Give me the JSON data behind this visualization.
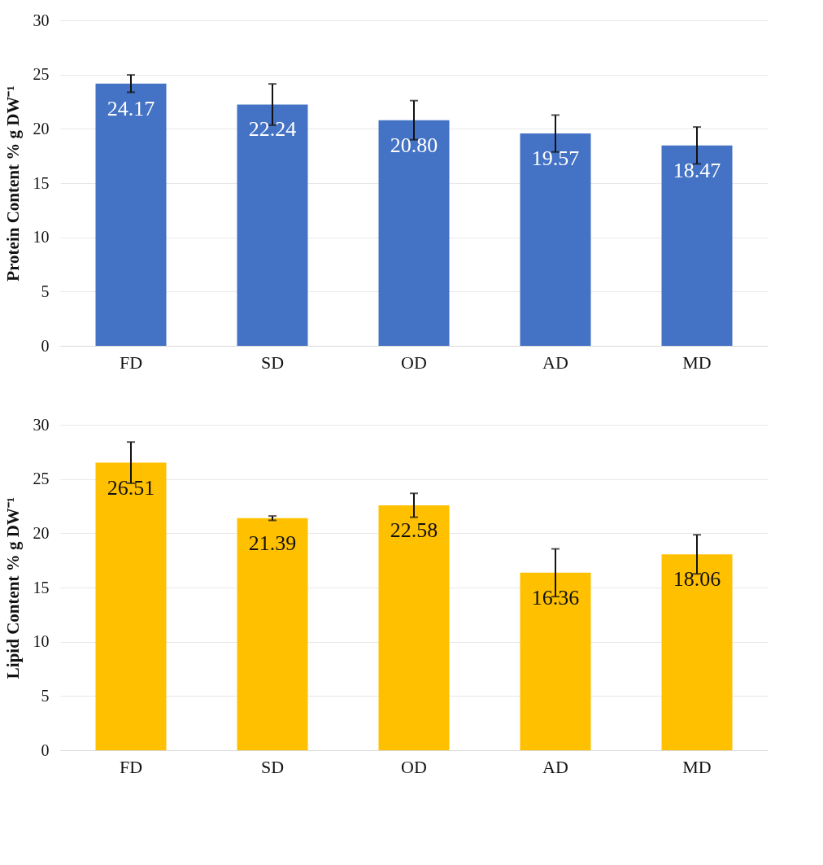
{
  "chart_data": [
    {
      "type": "bar",
      "ylabel": "Protein Content % g DW⁻¹",
      "categories": [
        "FD",
        "SD",
        "OD",
        "AD",
        "MD"
      ],
      "values": [
        24.17,
        22.24,
        20.8,
        19.57,
        18.47
      ],
      "value_labels": [
        "24.17",
        "22.24",
        "20.80",
        "19.57",
        "18.47"
      ],
      "errors": [
        0.8,
        1.9,
        1.8,
        1.7,
        1.7
      ],
      "color": "#4472c4",
      "ylim": [
        0,
        30
      ],
      "yticks": [
        0,
        5,
        10,
        15,
        20,
        25,
        30
      ],
      "grid": "y"
    },
    {
      "type": "bar",
      "ylabel": "Lipid Content % g DW⁻¹",
      "categories": [
        "FD",
        "SD",
        "OD",
        "AD",
        "MD"
      ],
      "values": [
        26.51,
        21.39,
        22.58,
        16.36,
        18.06
      ],
      "errors": [
        1.9,
        0.2,
        1.1,
        2.2,
        1.8
      ],
      "color": "#ffc000",
      "ylim": [
        0,
        30
      ],
      "yticks": [
        0,
        5,
        10,
        15,
        20,
        25,
        30
      ],
      "grid": "y",
      "data_labels": true
    }
  ]
}
